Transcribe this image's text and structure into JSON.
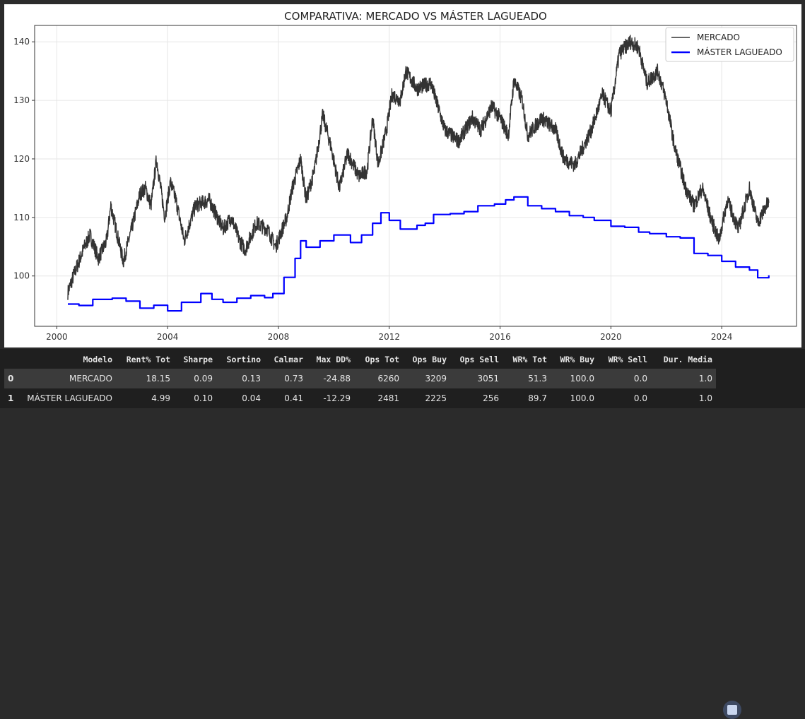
{
  "chart_data": {
    "type": "line",
    "title": "COMPARATIVA: MERCADO VS MÁSTER LAGUEADO",
    "xlabel": "",
    "ylabel": "",
    "xlim": [
      1999.2,
      2026.7
    ],
    "ylim": [
      91.4,
      142.8
    ],
    "xticks": [
      2000,
      2004,
      2008,
      2012,
      2016,
      2020,
      2024
    ],
    "yticks": [
      100,
      110,
      120,
      130,
      140
    ],
    "grid": true,
    "legend": "top-right",
    "series": [
      {
        "name": "MERCADO",
        "color": "#333333",
        "points": [
          [
            2000.4,
            97.2
          ],
          [
            2000.6,
            100
          ],
          [
            2001.0,
            105
          ],
          [
            2001.2,
            107
          ],
          [
            2001.5,
            103
          ],
          [
            2001.8,
            106
          ],
          [
            2001.95,
            112
          ],
          [
            2002.4,
            102.5
          ],
          [
            2002.7,
            108
          ],
          [
            2003.0,
            114
          ],
          [
            2003.2,
            115
          ],
          [
            2003.4,
            112
          ],
          [
            2003.6,
            120
          ],
          [
            2003.9,
            110
          ],
          [
            2004.1,
            116
          ],
          [
            2004.3,
            113
          ],
          [
            2004.6,
            106
          ],
          [
            2005.0,
            112
          ],
          [
            2005.5,
            113
          ],
          [
            2006.0,
            108
          ],
          [
            2006.3,
            110
          ],
          [
            2006.6,
            106
          ],
          [
            2006.8,
            104.5
          ],
          [
            2007.2,
            109
          ],
          [
            2007.6,
            108
          ],
          [
            2007.9,
            105
          ],
          [
            2008.3,
            110
          ],
          [
            2008.5,
            115
          ],
          [
            2008.8,
            120
          ],
          [
            2009.0,
            113
          ],
          [
            2009.3,
            118
          ],
          [
            2009.6,
            127.5
          ],
          [
            2009.9,
            122
          ],
          [
            2010.2,
            115
          ],
          [
            2010.5,
            121
          ],
          [
            2010.9,
            117
          ],
          [
            2011.2,
            118
          ],
          [
            2011.4,
            127
          ],
          [
            2011.6,
            119
          ],
          [
            2011.9,
            125
          ],
          [
            2012.1,
            131
          ],
          [
            2012.4,
            130
          ],
          [
            2012.6,
            135
          ],
          [
            2013.0,
            132
          ],
          [
            2013.5,
            133
          ],
          [
            2014.0,
            125
          ],
          [
            2014.5,
            123
          ],
          [
            2015.0,
            127
          ],
          [
            2015.3,
            125
          ],
          [
            2015.7,
            129
          ],
          [
            2016.0,
            127
          ],
          [
            2016.3,
            124
          ],
          [
            2016.5,
            133.5
          ],
          [
            2016.8,
            130
          ],
          [
            2017.0,
            124
          ],
          [
            2017.5,
            127
          ],
          [
            2018.0,
            125
          ],
          [
            2018.3,
            120
          ],
          [
            2018.7,
            119
          ],
          [
            2019.0,
            122
          ],
          [
            2019.3,
            125
          ],
          [
            2019.7,
            131
          ],
          [
            2020.0,
            128
          ],
          [
            2020.3,
            138
          ],
          [
            2020.7,
            140
          ],
          [
            2021.0,
            139
          ],
          [
            2021.3,
            133
          ],
          [
            2021.7,
            135
          ],
          [
            2022.0,
            130
          ],
          [
            2022.3,
            122
          ],
          [
            2022.7,
            115
          ],
          [
            2023.0,
            112
          ],
          [
            2023.3,
            115
          ],
          [
            2023.6,
            110
          ],
          [
            2023.9,
            106
          ],
          [
            2024.2,
            113
          ],
          [
            2024.6,
            108
          ],
          [
            2025.0,
            115
          ],
          [
            2025.3,
            109
          ],
          [
            2025.6,
            112
          ],
          [
            2025.7,
            112.5
          ]
        ]
      },
      {
        "name": "MÁSTER LAGUEADO",
        "color": "#0000ff",
        "points": [
          [
            2000.4,
            95.2
          ],
          [
            2000.8,
            94.8
          ],
          [
            2001.3,
            96
          ],
          [
            2002.0,
            96.2
          ],
          [
            2002.5,
            95.5
          ],
          [
            2003.0,
            94.5
          ],
          [
            2003.5,
            95
          ],
          [
            2004.0,
            94.2
          ],
          [
            2004.5,
            95.5
          ],
          [
            2005.2,
            97
          ],
          [
            2005.6,
            96
          ],
          [
            2006.0,
            95.5
          ],
          [
            2006.5,
            96.2
          ],
          [
            2007.0,
            96.5
          ],
          [
            2007.5,
            96.3
          ],
          [
            2007.8,
            97
          ],
          [
            2008.2,
            100
          ],
          [
            2008.6,
            103
          ],
          [
            2008.8,
            106
          ],
          [
            2009.0,
            105
          ],
          [
            2009.5,
            106
          ],
          [
            2010.0,
            107
          ],
          [
            2010.6,
            105.8
          ],
          [
            2011.0,
            107
          ],
          [
            2011.4,
            109
          ],
          [
            2011.7,
            110.5
          ],
          [
            2012.0,
            109.5
          ],
          [
            2012.4,
            108
          ],
          [
            2013.0,
            108.5
          ],
          [
            2013.3,
            109
          ],
          [
            2013.6,
            110.5
          ],
          [
            2014.2,
            110.5
          ],
          [
            2014.7,
            111
          ],
          [
            2015.2,
            112
          ],
          [
            2015.8,
            112.5
          ],
          [
            2016.2,
            113
          ],
          [
            2016.5,
            113.5
          ],
          [
            2017.0,
            112
          ],
          [
            2017.5,
            111.5
          ],
          [
            2018.0,
            111
          ],
          [
            2018.5,
            110.5
          ],
          [
            2019.0,
            110
          ],
          [
            2019.4,
            109.5
          ],
          [
            2020.0,
            108.5
          ],
          [
            2020.5,
            108.3
          ],
          [
            2021.0,
            107.5
          ],
          [
            2021.4,
            107
          ],
          [
            2022.0,
            106.7
          ],
          [
            2022.5,
            106.5
          ],
          [
            2023.0,
            104
          ],
          [
            2023.5,
            103.5
          ],
          [
            2024.0,
            102.5
          ],
          [
            2024.5,
            101.8
          ],
          [
            2025.0,
            101
          ],
          [
            2025.3,
            99.7
          ],
          [
            2025.7,
            100
          ]
        ]
      }
    ]
  },
  "table": {
    "headers": [
      "",
      "Modelo",
      "Rent% Tot",
      "Sharpe",
      "Sortino",
      "Calmar",
      "Max DD%",
      "Ops Tot",
      "Ops Buy",
      "Ops Sell",
      "WR% Tot",
      "WR% Buy",
      "WR% Sell",
      "Dur. Media"
    ],
    "rows": [
      [
        "0",
        "MERCADO",
        "18.15",
        "0.09",
        "0.13",
        "0.73",
        "-24.88",
        "6260",
        "3209",
        "3051",
        "51.3",
        "100.0",
        "0.0",
        "1.0"
      ],
      [
        "1",
        "MÁSTER LAGUEADO",
        "4.99",
        "0.10",
        "0.04",
        "0.41",
        "-12.29",
        "2481",
        "2225",
        "256",
        "89.7",
        "100.0",
        "0.0",
        "1.0"
      ]
    ]
  }
}
